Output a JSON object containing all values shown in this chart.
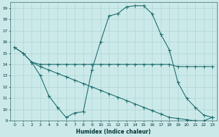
{
  "xlabel": "Humidex (Indice chaleur)",
  "xlim": [
    -0.5,
    23.5
  ],
  "ylim": [
    9,
    19.5
  ],
  "yticks": [
    9,
    10,
    11,
    12,
    13,
    14,
    15,
    16,
    17,
    18,
    19
  ],
  "xticks": [
    0,
    1,
    2,
    3,
    4,
    5,
    6,
    7,
    8,
    9,
    10,
    11,
    12,
    13,
    14,
    15,
    16,
    17,
    18,
    19,
    20,
    21,
    22,
    23
  ],
  "background_color": "#cce9e9",
  "line_color": "#1a6b6b",
  "grid_color": "#aad4d4",
  "line1_x": [
    0,
    1,
    2,
    3,
    4,
    5,
    6,
    7,
    8,
    9,
    10,
    11,
    12,
    13,
    14,
    15,
    16,
    17,
    18,
    19,
    20,
    21,
    22,
    23
  ],
  "line1_y": [
    15.5,
    15.0,
    14.2,
    14.0,
    14.0,
    14.0,
    14.0,
    14.0,
    14.0,
    14.0,
    14.0,
    14.0,
    14.0,
    14.0,
    14.0,
    14.0,
    14.0,
    14.0,
    14.0,
    13.8,
    13.8,
    13.8,
    13.8,
    13.8
  ],
  "line2_x": [
    0,
    1,
    2,
    3,
    4,
    5,
    6,
    7,
    8,
    9,
    10,
    11,
    12,
    13,
    14,
    15,
    16,
    17,
    18,
    19,
    20,
    21,
    22,
    23
  ],
  "line2_y": [
    15.5,
    15.0,
    14.2,
    13.0,
    11.2,
    10.2,
    9.3,
    9.7,
    9.8,
    13.5,
    16.0,
    18.3,
    18.5,
    19.1,
    19.2,
    19.2,
    18.5,
    16.7,
    15.3,
    12.4,
    11.0,
    10.2,
    9.5,
    9.3
  ],
  "line3_x": [
    2,
    3,
    4,
    5,
    6,
    7,
    8,
    9,
    10,
    11,
    12,
    13,
    14,
    15,
    16,
    17,
    18,
    19,
    20,
    21,
    22,
    23
  ],
  "line3_y": [
    14.2,
    13.8,
    13.5,
    13.2,
    12.9,
    12.6,
    12.3,
    12.0,
    11.7,
    11.4,
    11.1,
    10.8,
    10.5,
    10.2,
    9.9,
    9.6,
    9.3,
    9.2,
    9.1,
    9.0,
    9.0,
    9.3
  ]
}
